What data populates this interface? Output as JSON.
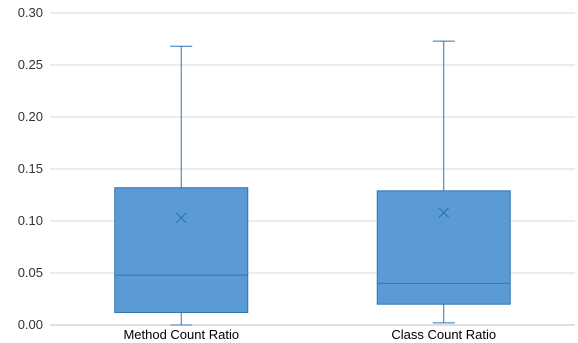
{
  "chart_data": {
    "type": "box",
    "title": "",
    "xlabel": "",
    "ylabel": "",
    "ylim": [
      0,
      0.3
    ],
    "yticks": [
      "0.00",
      "0.05",
      "0.10",
      "0.15",
      "0.20",
      "0.25",
      "0.30"
    ],
    "grid": true,
    "legend": "none",
    "categories": [
      "Method Count Ratio",
      "Class Count Ratio"
    ],
    "boxes": [
      {
        "category": "Method Count Ratio",
        "min": 0.0,
        "q1": 0.012,
        "median": 0.048,
        "mean": 0.103,
        "q3": 0.132,
        "max": 0.268
      },
      {
        "category": "Class Count Ratio",
        "min": 0.002,
        "q1": 0.02,
        "median": 0.04,
        "mean": 0.108,
        "q3": 0.129,
        "max": 0.273
      }
    ],
    "colors": {
      "box_fill": "#5b9bd5",
      "box_stroke": "#2e75b6",
      "grid": "#d9d9d9",
      "axis": "#bfbfbf"
    }
  }
}
